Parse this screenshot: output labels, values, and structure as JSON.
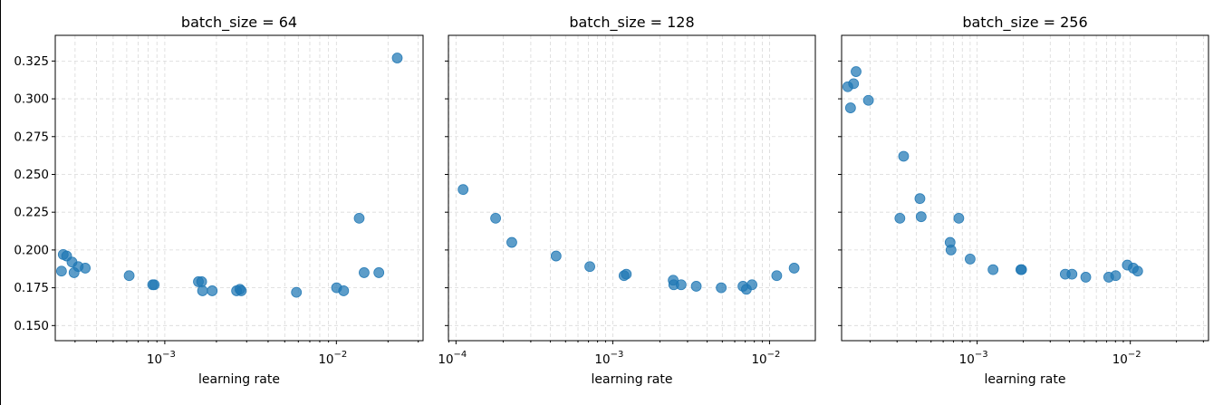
{
  "chart_data": [
    {
      "type": "scatter",
      "title": "batch_size = 64",
      "xlabel": "learning rate",
      "ylabel": "",
      "xscale": "log",
      "xlim": [
        0.00023,
        0.032
      ],
      "ylim": [
        0.14,
        0.342
      ],
      "xticks": [
        {
          "value": 0.001,
          "base": "10",
          "exp": "−3"
        },
        {
          "value": 0.01,
          "base": "10",
          "exp": "−2"
        }
      ],
      "yticks": [
        "0.150",
        "0.175",
        "0.200",
        "0.225",
        "0.250",
        "0.275",
        "0.300",
        "0.325"
      ],
      "grid": true,
      "series": [
        {
          "x": [
            0.00025,
            0.000256,
            0.000268,
            0.000288,
            0.000296,
            0.000313,
            0.000344,
            0.00062,
            0.00085,
            0.000868,
            0.00157,
            0.00164,
            0.00166,
            0.00189,
            0.00262,
            0.00274,
            0.00279,
            0.00585,
            0.01003,
            0.01102,
            0.01358,
            0.01451,
            0.01768,
            0.02263
          ],
          "y": [
            0.186,
            0.197,
            0.196,
            0.192,
            0.185,
            0.189,
            0.188,
            0.183,
            0.177,
            0.177,
            0.179,
            0.179,
            0.173,
            0.173,
            0.173,
            0.174,
            0.173,
            0.172,
            0.175,
            0.173,
            0.221,
            0.185,
            0.185,
            0.327
          ]
        }
      ]
    },
    {
      "type": "scatter",
      "title": "batch_size = 128",
      "xlabel": "learning rate",
      "ylabel": "",
      "xscale": "log",
      "xlim": [
        8.95e-05,
        0.0196
      ],
      "ylim": [
        0.14,
        0.342
      ],
      "xticks": [
        {
          "value": 0.0001,
          "base": "10",
          "exp": "−4"
        },
        {
          "value": 0.001,
          "base": "10",
          "exp": "−3"
        },
        {
          "value": 0.01,
          "base": "10",
          "exp": "−2"
        }
      ],
      "yticks": [
        "0.150",
        "0.175",
        "0.200",
        "0.225",
        "0.250",
        "0.275",
        "0.300",
        "0.325"
      ],
      "grid": true,
      "series": [
        {
          "x": [
            0.000111,
            0.000179,
            0.000227,
            0.000435,
            0.000714,
            0.00118,
            0.00122,
            0.00243,
            0.00245,
            0.00273,
            0.00341,
            0.00492,
            0.00677,
            0.00712,
            0.00773,
            0.01112,
            0.01436
          ],
          "y": [
            0.24,
            0.221,
            0.205,
            0.196,
            0.189,
            0.183,
            0.184,
            0.18,
            0.177,
            0.177,
            0.176,
            0.175,
            0.176,
            0.174,
            0.177,
            0.183,
            0.188
          ]
        }
      ]
    },
    {
      "type": "scatter",
      "title": "batch_size = 256",
      "xlabel": "learning rate",
      "ylabel": "",
      "xscale": "log",
      "xlim": [
        0.0001303,
        0.0324
      ],
      "ylim": [
        0.14,
        0.342
      ],
      "xticks": [
        {
          "value": 0.001,
          "base": "10",
          "exp": "−3"
        },
        {
          "value": 0.01,
          "base": "10",
          "exp": "−2"
        }
      ],
      "yticks": [
        "0.150",
        "0.175",
        "0.200",
        "0.225",
        "0.250",
        "0.275",
        "0.300",
        "0.325"
      ],
      "grid": true,
      "series": [
        {
          "x": [
            0.000143,
            0.000149,
            0.000156,
            0.000162,
            0.000195,
            0.000313,
            0.000331,
            0.000423,
            0.000431,
            0.000666,
            0.000675,
            0.000759,
            0.0009,
            0.00127,
            0.00193,
            0.00195,
            0.00376,
            0.00416,
            0.00512,
            0.00723,
            0.00802,
            0.00956,
            0.01046,
            0.01117
          ],
          "y": [
            0.308,
            0.294,
            0.31,
            0.318,
            0.299,
            0.221,
            0.262,
            0.234,
            0.222,
            0.205,
            0.2,
            0.221,
            0.194,
            0.187,
            0.187,
            0.187,
            0.184,
            0.184,
            0.182,
            0.182,
            0.183,
            0.19,
            0.188,
            0.186
          ]
        }
      ]
    }
  ]
}
